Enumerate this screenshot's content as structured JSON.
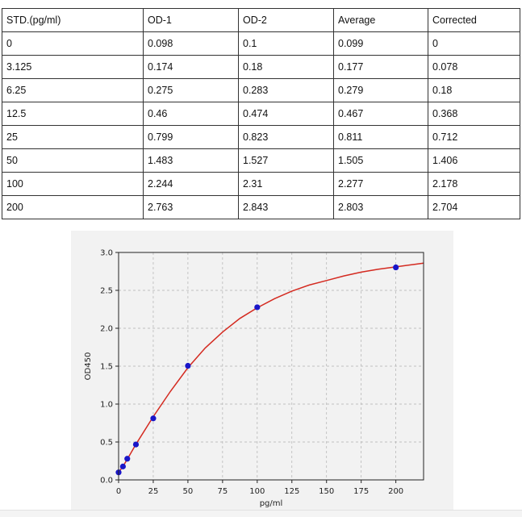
{
  "table": {
    "headers": [
      "STD.(pg/ml)",
      "OD-1",
      "OD-2",
      "Average",
      "Corrected"
    ],
    "rows": [
      [
        "0",
        "0.098",
        "0.1",
        "0.099",
        "0"
      ],
      [
        "3.125",
        "0.174",
        "0.18",
        "0.177",
        "0.078"
      ],
      [
        "6.25",
        "0.275",
        "0.283",
        "0.279",
        "0.18"
      ],
      [
        "12.5",
        "0.46",
        "0.474",
        "0.467",
        "0.368"
      ],
      [
        "25",
        "0.799",
        "0.823",
        "0.811",
        "0.712"
      ],
      [
        "50",
        "1.483",
        "1.527",
        "1.505",
        "1.406"
      ],
      [
        "100",
        "2.244",
        "2.31",
        "2.277",
        "2.178"
      ],
      [
        "200",
        "2.763",
        "2.843",
        "2.803",
        "2.704"
      ]
    ]
  },
  "chart_data": {
    "type": "scatter",
    "title": "",
    "xlabel": "pg/ml",
    "ylabel": "OD450",
    "xlim": [
      0,
      220
    ],
    "ylim": [
      0,
      3.0
    ],
    "xticks": [
      0,
      25,
      50,
      75,
      100,
      125,
      150,
      175,
      200
    ],
    "yticks": [
      0.0,
      0.5,
      1.0,
      1.5,
      2.0,
      2.5,
      3.0
    ],
    "ytick_labels": [
      "0.0",
      "0.5",
      "1.0",
      "1.5",
      "2.0",
      "2.5",
      "3.0"
    ],
    "grid": true,
    "points": {
      "x": [
        0,
        3.125,
        6.25,
        12.5,
        25,
        50,
        100,
        200
      ],
      "y": [
        0.099,
        0.177,
        0.279,
        0.467,
        0.811,
        1.505,
        2.277,
        2.803
      ],
      "color": "#1a16c8"
    },
    "fit_curve": {
      "color": "#d42a20",
      "x": [
        0,
        3.125,
        6.25,
        12.5,
        25,
        37.5,
        50,
        62.5,
        75,
        87.5,
        100,
        112.5,
        125,
        137.5,
        150,
        162.5,
        175,
        187.5,
        200,
        212.5,
        220
      ],
      "y": [
        0.1,
        0.178,
        0.271,
        0.47,
        0.835,
        1.17,
        1.48,
        1.74,
        1.95,
        2.13,
        2.27,
        2.39,
        2.49,
        2.57,
        2.63,
        2.69,
        2.74,
        2.78,
        2.81,
        2.84,
        2.86
      ]
    }
  }
}
